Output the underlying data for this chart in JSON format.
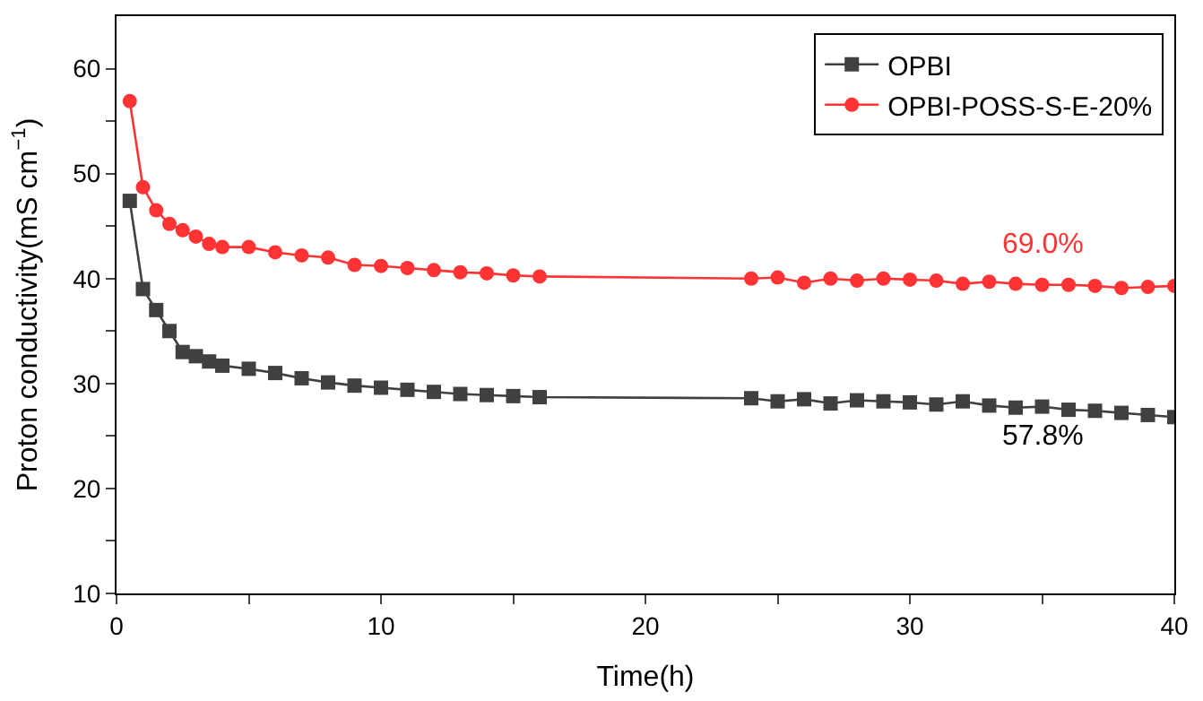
{
  "chart_data": {
    "type": "line",
    "xlabel": "Time(h)",
    "ylabel": "Proton conductivity(mS cm$^{−1}$)",
    "x": [
      0.5,
      1,
      1.5,
      2,
      2.5,
      3,
      3.5,
      4,
      5,
      6,
      7,
      8,
      9,
      10,
      11,
      12,
      13,
      14,
      15,
      16,
      24,
      25,
      26,
      27,
      28,
      29,
      30,
      31,
      32,
      33,
      34,
      35,
      36,
      37,
      38,
      39,
      40
    ],
    "series": [
      {
        "name": "OPBI",
        "color": "#404040",
        "marker": "square",
        "values": [
          47.4,
          39,
          37,
          35,
          33,
          32.6,
          32.1,
          31.7,
          31.4,
          31,
          30.5,
          30.1,
          29.8,
          29.6,
          29.4,
          29.2,
          29.0,
          28.9,
          28.8,
          28.7,
          28.6,
          28.3,
          28.5,
          28.1,
          28.4,
          28.3,
          28.2,
          28.0,
          28.3,
          27.9,
          27.7,
          27.8,
          27.5,
          27.4,
          27.2,
          27.0,
          26.8
        ]
      },
      {
        "name": "OPBI-POSS-S-E-20%",
        "color": "#ff3333",
        "marker": "circle",
        "values": [
          56.9,
          48.7,
          46.5,
          45.2,
          44.6,
          44.0,
          43.3,
          43.0,
          43.0,
          42.5,
          42.2,
          42.0,
          41.3,
          41.2,
          41.0,
          40.8,
          40.6,
          40.5,
          40.3,
          40.2,
          40.0,
          40.1,
          39.6,
          40.0,
          39.8,
          40.0,
          39.9,
          39.8,
          39.5,
          39.7,
          39.5,
          39.4,
          39.4,
          39.3,
          39.1,
          39.2,
          39.3
        ]
      }
    ],
    "annotations": [
      "69.0%",
      "57.8%"
    ],
    "xlim": [
      0,
      40
    ],
    "ylim": [
      10,
      65
    ],
    "xticks": [
      0,
      {
        "value": 5,
        "label": null
      },
      10,
      {
        "value": 15,
        "label": null
      },
      20,
      {
        "value": 25,
        "label": null
      },
      30,
      {
        "value": 35,
        "label": null
      },
      40
    ],
    "yticks": [
      10,
      {
        "value": 15,
        "label": null
      },
      20,
      {
        "value": 25,
        "label": null
      },
      30,
      {
        "value": 35,
        "label": null
      },
      40,
      {
        "value": 45,
        "label": null
      },
      50,
      {
        "value": 55,
        "label": null
      },
      60
    ],
    "legend": "top right",
    "line_style": "solid"
  }
}
